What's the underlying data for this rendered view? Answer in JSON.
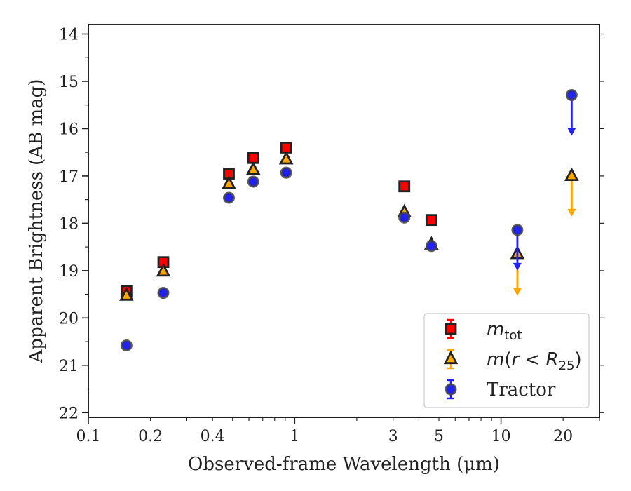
{
  "chart_data": {
    "type": "scatter",
    "xlabel": "Observed-frame Wavelength (μm)",
    "ylabel": "Apparent Brightness (AB mag)",
    "xscale": "log",
    "xlim": [
      0.1,
      30
    ],
    "ylim": [
      22.1,
      13.8
    ],
    "y_inverted": true,
    "x_ticks": [
      0.1,
      0.2,
      0.4,
      1,
      3,
      5,
      10,
      20
    ],
    "x_tick_labels": [
      "0.1",
      "0.2",
      "0.4",
      "1",
      "3",
      "5",
      "10",
      "20"
    ],
    "y_ticks": [
      14,
      15,
      16,
      17,
      18,
      19,
      20,
      21,
      22
    ],
    "y_tick_labels": [
      "14",
      "15",
      "16",
      "17",
      "18",
      "19",
      "20",
      "21",
      "22"
    ],
    "legend_position": "lower-right",
    "series": [
      {
        "name": "m_tot",
        "legend_label": "mtot",
        "marker": "square",
        "color": "#ff0000",
        "points": [
          {
            "x": 0.153,
            "y": 19.43
          },
          {
            "x": 0.231,
            "y": 18.82
          },
          {
            "x": 0.48,
            "y": 16.95
          },
          {
            "x": 0.63,
            "y": 16.62
          },
          {
            "x": 0.91,
            "y": 16.4
          },
          {
            "x": 3.4,
            "y": 17.22
          },
          {
            "x": 4.6,
            "y": 17.93
          }
        ]
      },
      {
        "name": "m(r<R25)",
        "legend_label": "m(r < R25)",
        "marker": "triangle",
        "color": "#ffa500",
        "points": [
          {
            "x": 0.153,
            "y": 19.53
          },
          {
            "x": 0.231,
            "y": 19.02
          },
          {
            "x": 0.48,
            "y": 17.17
          },
          {
            "x": 0.63,
            "y": 16.87
          },
          {
            "x": 0.91,
            "y": 16.65
          },
          {
            "x": 3.4,
            "y": 17.77
          },
          {
            "x": 4.6,
            "y": 18.45
          },
          {
            "x": 12.0,
            "y": 18.65,
            "upper_limit": true,
            "arrow_to": 19.5
          },
          {
            "x": 22.0,
            "y": 17.0,
            "upper_limit": true,
            "arrow_to": 17.83
          }
        ]
      },
      {
        "name": "Tractor",
        "legend_label": "Tractor",
        "marker": "circle",
        "color": "#2222ee",
        "points": [
          {
            "x": 0.153,
            "y": 20.58
          },
          {
            "x": 0.231,
            "y": 19.47
          },
          {
            "x": 0.48,
            "y": 17.46
          },
          {
            "x": 0.63,
            "y": 17.12
          },
          {
            "x": 0.91,
            "y": 16.93
          },
          {
            "x": 3.4,
            "y": 17.88
          },
          {
            "x": 4.6,
            "y": 18.48
          },
          {
            "x": 12.0,
            "y": 18.14,
            "upper_limit": true,
            "arrow_to": 18.97
          },
          {
            "x": 22.0,
            "y": 15.29,
            "upper_limit": true,
            "arrow_to": 16.12
          }
        ]
      }
    ]
  }
}
